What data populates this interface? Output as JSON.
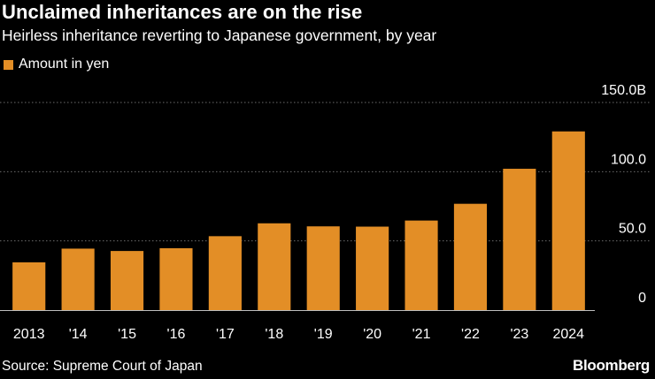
{
  "header": {
    "title": "Unclaimed inheritances are on the rise",
    "subtitle": "Heirless inheritance reverting to Japanese government, by year"
  },
  "legend": {
    "label": "Amount in yen"
  },
  "footer": {
    "source": "Source: Supreme Court of Japan",
    "brand": "Bloomberg"
  },
  "colors": {
    "bar": "#E38E26",
    "background": "#000000",
    "grid": "#6b6b6b",
    "text": "#ffffff"
  },
  "chart_data": {
    "type": "bar",
    "title": "Unclaimed inheritances are on the rise",
    "subtitle": "Heirless inheritance reverting to Japanese government, by year",
    "xlabel": "",
    "ylabel": "",
    "categories": [
      "2013",
      "'14",
      "'15",
      "'16",
      "'17",
      "'18",
      "'19",
      "'20",
      "'21",
      "'22",
      "'23",
      "2024"
    ],
    "series": [
      {
        "name": "Amount in yen",
        "values": [
          34.5,
          44.4,
          42.7,
          44.7,
          53.4,
          62.7,
          60.5,
          60.3,
          64.7,
          76.8,
          102.1,
          129.1
        ]
      }
    ],
    "ylim": [
      0,
      150
    ],
    "yticks": [
      0,
      50,
      100,
      150
    ],
    "ytick_labels": [
      "0",
      "50.0",
      "100.0",
      "150.0B"
    ],
    "grid": true,
    "legend_position": "top-left"
  }
}
